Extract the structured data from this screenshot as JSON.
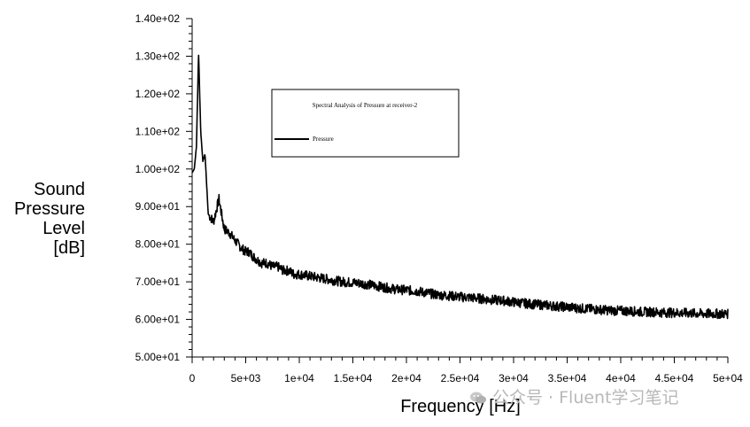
{
  "chart_data": {
    "type": "line",
    "title": "",
    "xlabel": "Frequency [Hz]",
    "ylabel_lines": [
      "Sound",
      "Pressure",
      "Level",
      "[dB]"
    ],
    "xlim": [
      0,
      50000
    ],
    "ylim": [
      50,
      140
    ],
    "x_ticks": [
      0,
      5000,
      10000,
      15000,
      20000,
      25000,
      30000,
      35000,
      40000,
      45000,
      50000
    ],
    "x_tick_labels": [
      "0",
      "5e+03",
      "1e+04",
      "1.5e+04",
      "2e+04",
      "2.5e+04",
      "3e+04",
      "3.5e+04",
      "4e+04",
      "4.5e+04",
      "5e+04"
    ],
    "y_ticks": [
      50,
      60,
      70,
      80,
      90,
      100,
      110,
      120,
      130,
      140
    ],
    "y_tick_labels": [
      "5.00e+01",
      "6.00e+01",
      "7.00e+01",
      "8.00e+01",
      "9.00e+01",
      "1.00e+02",
      "1.10e+02",
      "1.20e+02",
      "1.30e+02",
      "1.40e+02"
    ],
    "grid": false,
    "legend": {
      "position": "top-center",
      "heading": "Spectral Analysis of Pressure at receiver-2",
      "entries": [
        "Pressure"
      ]
    },
    "series": [
      {
        "name": "Pressure",
        "color": "#000000",
        "x": [
          0,
          200,
          400,
          600,
          800,
          1000,
          1200,
          1500,
          2000,
          2500,
          3000,
          3500,
          4000,
          4300,
          4600,
          5000,
          5300,
          5600,
          6000,
          6500,
          7000,
          7500,
          8000,
          8500,
          9000,
          9500,
          10000,
          11000,
          12000,
          13000,
          14000,
          15000,
          16000,
          17000,
          18000,
          19000,
          20000,
          21000,
          22000,
          23000,
          24000,
          25000,
          26000,
          27000,
          28000,
          29000,
          30000,
          31000,
          32000,
          33000,
          34000,
          35000,
          36000,
          37000,
          38000,
          39000,
          40000,
          41000,
          42000,
          43000,
          44000,
          45000,
          46000,
          47000,
          48000,
          49000,
          50000
        ],
        "y": [
          99,
          100,
          106,
          131,
          110,
          102,
          104,
          88,
          86,
          92,
          84,
          83,
          81,
          80,
          79,
          78,
          78,
          77,
          76,
          75,
          75,
          74,
          74,
          73,
          73,
          72,
          72,
          71.5,
          71,
          70.5,
          70,
          69.8,
          69.5,
          69,
          68.5,
          68,
          67.8,
          67.5,
          67,
          66.5,
          66.3,
          66,
          65.8,
          65.5,
          65.2,
          65,
          64.6,
          64.3,
          64,
          63.8,
          63.5,
          63.3,
          63,
          62.8,
          62.6,
          62.4,
          62.3,
          62.2,
          62,
          62,
          61.8,
          61.8,
          61.7,
          61.6,
          61.5,
          61.5,
          61.5
        ]
      }
    ]
  },
  "watermark": "公众号 · Fluent学习笔记"
}
